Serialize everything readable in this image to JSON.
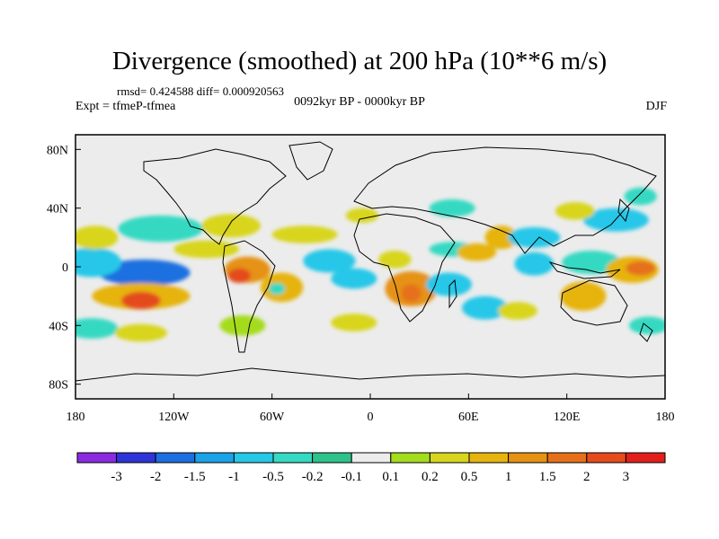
{
  "chart_data": {
    "type": "heatmap",
    "title": "Divergence (smoothed) at 200 hPa (10**6 m/s)",
    "stats_text": "rmsd= 0.424588 diff= 0.000920563",
    "expt_text": "Expt = tfmeP-tfmea",
    "period_text": "0092kyr BP - 0000kyr BP",
    "season_text": "DJF",
    "xlim": [
      -180,
      180
    ],
    "ylim": [
      -90,
      90
    ],
    "x_ticks": [
      {
        "value": -180,
        "label": "180"
      },
      {
        "value": -120,
        "label": "120W"
      },
      {
        "value": -60,
        "label": "60W"
      },
      {
        "value": 0,
        "label": "0"
      },
      {
        "value": 60,
        "label": "60E"
      },
      {
        "value": 120,
        "label": "120E"
      },
      {
        "value": 180,
        "label": "180"
      }
    ],
    "y_ticks": [
      {
        "value": 80,
        "label": "80N"
      },
      {
        "value": 40,
        "label": "40N"
      },
      {
        "value": 0,
        "label": "0"
      },
      {
        "value": -40,
        "label": "40S"
      },
      {
        "value": -80,
        "label": "80S"
      }
    ],
    "colorbar": {
      "colors": [
        "#8a2be2",
        "#2d35d8",
        "#1b6fe0",
        "#1aa3e6",
        "#27c7e8",
        "#36d9c2",
        "#2ec28a",
        "#ececec",
        "#a4dc1e",
        "#d8d51e",
        "#e6b40e",
        "#e59212",
        "#e6701a",
        "#e44c1e",
        "#e01f1c"
      ],
      "labels": [
        "-3",
        "-2",
        "-1.5",
        "-1",
        "-0.5",
        "-0.2",
        "-0.1",
        "0.1",
        "0.2",
        "0.5",
        "1",
        "1.5",
        "2",
        "3"
      ]
    },
    "blobs": [
      {
        "lon": -138,
        "lat": -4,
        "rx": 28,
        "ry": 9,
        "value": -1.9
      },
      {
        "lon": -170,
        "lat": 3,
        "rx": 18,
        "ry": 10,
        "value": -0.6
      },
      {
        "lon": -140,
        "lat": -20,
        "rx": 30,
        "ry": 9,
        "value": 0.8
      },
      {
        "lon": -140,
        "lat": -23,
        "rx": 12,
        "ry": 6,
        "value": 2.5
      },
      {
        "lon": -168,
        "lat": 20,
        "rx": 14,
        "ry": 8,
        "value": 0.3
      },
      {
        "lon": -128,
        "lat": 26,
        "rx": 26,
        "ry": 9,
        "value": -0.4
      },
      {
        "lon": -100,
        "lat": 12,
        "rx": 20,
        "ry": 6,
        "value": 0.5
      },
      {
        "lon": -75,
        "lat": -2,
        "rx": 14,
        "ry": 9,
        "value": 1.3
      },
      {
        "lon": -80,
        "lat": -6,
        "rx": 7,
        "ry": 5,
        "value": 2.1
      },
      {
        "lon": -54,
        "lat": -14,
        "rx": 13,
        "ry": 10,
        "value": 0.9
      },
      {
        "lon": -57,
        "lat": -15,
        "rx": 5,
        "ry": 4,
        "value": -0.3
      },
      {
        "lon": -85,
        "lat": 28,
        "rx": 18,
        "ry": 8,
        "value": 0.4
      },
      {
        "lon": -40,
        "lat": 22,
        "rx": 20,
        "ry": 6,
        "value": 0.4
      },
      {
        "lon": -25,
        "lat": 4,
        "rx": 16,
        "ry": 8,
        "value": -0.7
      },
      {
        "lon": -10,
        "lat": -8,
        "rx": 14,
        "ry": 7,
        "value": -0.6
      },
      {
        "lon": -170,
        "lat": -42,
        "rx": 16,
        "ry": 7,
        "value": -0.3
      },
      {
        "lon": -140,
        "lat": -45,
        "rx": 16,
        "ry": 6,
        "value": 0.3
      },
      {
        "lon": -78,
        "lat": -40,
        "rx": 14,
        "ry": 7,
        "value": 0.2
      },
      {
        "lon": 25,
        "lat": -15,
        "rx": 16,
        "ry": 12,
        "value": 1.2
      },
      {
        "lon": 25,
        "lat": -18,
        "rx": 6,
        "ry": 6,
        "value": 1.8
      },
      {
        "lon": 15,
        "lat": 5,
        "rx": 10,
        "ry": 6,
        "value": 0.4
      },
      {
        "lon": 50,
        "lat": 12,
        "rx": 14,
        "ry": 5,
        "value": -0.4
      },
      {
        "lon": 48,
        "lat": -12,
        "rx": 14,
        "ry": 8,
        "value": -0.6
      },
      {
        "lon": 65,
        "lat": 10,
        "rx": 12,
        "ry": 6,
        "value": 0.6
      },
      {
        "lon": 80,
        "lat": 20,
        "rx": 10,
        "ry": 8,
        "value": 0.8
      },
      {
        "lon": 100,
        "lat": 20,
        "rx": 16,
        "ry": 7,
        "value": -0.5
      },
      {
        "lon": 100,
        "lat": 2,
        "rx": 12,
        "ry": 8,
        "value": -0.9
      },
      {
        "lon": 135,
        "lat": 3,
        "rx": 18,
        "ry": 8,
        "value": -0.3
      },
      {
        "lon": 160,
        "lat": -2,
        "rx": 16,
        "ry": 9,
        "value": 1.0
      },
      {
        "lon": 165,
        "lat": -1,
        "rx": 9,
        "ry": 5,
        "value": 1.6
      },
      {
        "lon": 130,
        "lat": -20,
        "rx": 14,
        "ry": 10,
        "value": 0.7
      },
      {
        "lon": 150,
        "lat": 32,
        "rx": 20,
        "ry": 8,
        "value": -0.6
      },
      {
        "lon": 125,
        "lat": 38,
        "rx": 12,
        "ry": 6,
        "value": 0.4
      },
      {
        "lon": 165,
        "lat": 48,
        "rx": 10,
        "ry": 6,
        "value": -0.2
      },
      {
        "lon": 70,
        "lat": -28,
        "rx": 14,
        "ry": 8,
        "value": -0.6
      },
      {
        "lon": 90,
        "lat": -30,
        "rx": 12,
        "ry": 6,
        "value": 0.4
      },
      {
        "lon": 170,
        "lat": -40,
        "rx": 12,
        "ry": 6,
        "value": -0.4
      },
      {
        "lon": -10,
        "lat": -38,
        "rx": 14,
        "ry": 6,
        "value": 0.3
      },
      {
        "lon": 50,
        "lat": 40,
        "rx": 14,
        "ry": 6,
        "value": -0.3
      },
      {
        "lon": -5,
        "lat": 35,
        "rx": 10,
        "ry": 5,
        "value": 0.3
      }
    ]
  }
}
